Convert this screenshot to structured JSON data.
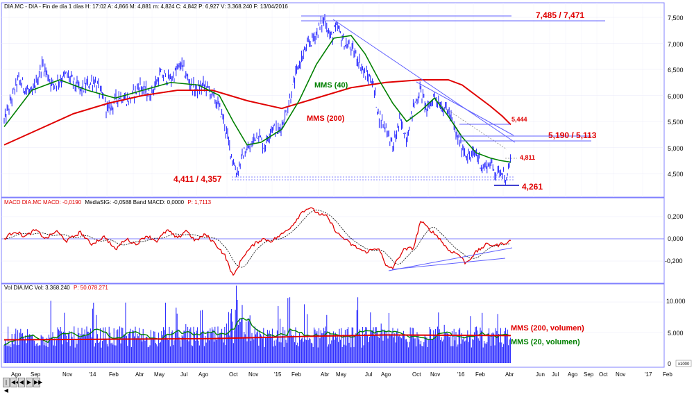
{
  "price_panel": {
    "header": "DIA.MC - DIA - Fin de día 1 días H: 17:02 A: 4,866 M: 4,881 m: 4,824 C: 4,842 P: 6,927 V: 3.368.240 F: 13/04/2016",
    "y_ticks": [
      "7,500",
      "7,000",
      "6,500",
      "6,000",
      "5,500",
      "5,000",
      "4,500"
    ],
    "annotations": {
      "top_resistance": "7,485 / 7,471",
      "level_5444": "5,444",
      "level_5190": "5,190 / 5,113",
      "level_4811": "4,811",
      "support_left": "4,411 / 4,357",
      "level_4261": "4,261",
      "mms40_label": "MMS (40)",
      "mms200_label": "MMS (200)"
    }
  },
  "macd_panel": {
    "header_red": "MACD  DIA.MC  MACD: -0,0190",
    "header_black": "MediaSIG: -0,0588  Band  MACD: 0,0000",
    "header_red2": "P: 1,7113",
    "y_ticks": [
      "0,200",
      "0,000",
      "-0,200"
    ]
  },
  "volume_panel": {
    "header_black": "Vol  DIA.MC  Vol: 3.368.240",
    "header_red": "P: 50.078.271",
    "y_ticks": [
      "10.000",
      "5.000",
      "0"
    ],
    "unit_box": "x1000",
    "mms200_label": "MMS (200, volumen)",
    "mms20_label": "MMS (20, volumen)"
  },
  "x_axis_labels": [
    "Ago",
    "Sep",
    "Nov",
    "'14",
    "Feb",
    "Abr",
    "May",
    "Jul",
    "Ago",
    "Oct",
    "Nov",
    "'15",
    "Feb",
    "Abr",
    "May",
    "Jul",
    "Ago",
    "Oct",
    "Nov",
    "'16",
    "Feb",
    "Abr",
    "Jun",
    "Jul",
    "Ago",
    "Sep",
    "Oct",
    "Nov",
    "'17",
    "Feb"
  ],
  "nav_buttons": [
    "|◀",
    "◀◀",
    "◀",
    "▶",
    "▶▶"
  ],
  "colors": {
    "price": "#1a1aff",
    "mms40": "#008000",
    "mms200": "#e00000",
    "trendline": "#6060ff",
    "macd": "#e00000",
    "signal": "#000000",
    "volume": "#1a1aff",
    "vol_mms200": "#e00000",
    "vol_mms20": "#008000",
    "annotation_red": "#e00000"
  },
  "chart_data": [
    {
      "type": "line",
      "name": "price",
      "x_range_months": [
        "2013-08",
        "2016-04"
      ],
      "ylim": [
        4.2,
        7.55
      ],
      "close_points": [
        [
          0,
          5.5
        ],
        [
          20,
          6.3
        ],
        [
          40,
          6.0
        ],
        [
          55,
          6.6
        ],
        [
          70,
          6.2
        ],
        [
          90,
          6.4
        ],
        [
          110,
          6.1
        ],
        [
          130,
          6.3
        ],
        [
          150,
          5.7
        ],
        [
          165,
          6.0
        ],
        [
          180,
          5.9
        ],
        [
          195,
          6.2
        ],
        [
          210,
          6.0
        ],
        [
          225,
          6.4
        ],
        [
          240,
          6.3
        ],
        [
          255,
          6.6
        ],
        [
          265,
          6.3
        ],
        [
          275,
          6.1
        ],
        [
          290,
          6.2
        ],
        [
          305,
          5.9
        ],
        [
          315,
          5.6
        ],
        [
          325,
          5.0
        ],
        [
          335,
          4.5
        ],
        [
          345,
          4.9
        ],
        [
          355,
          5.0
        ],
        [
          365,
          5.3
        ],
        [
          375,
          5.0
        ],
        [
          385,
          5.4
        ],
        [
          395,
          5.3
        ],
        [
          405,
          5.6
        ],
        [
          415,
          6.1
        ],
        [
          425,
          6.6
        ],
        [
          435,
          6.9
        ],
        [
          445,
          7.1
        ],
        [
          455,
          7.3
        ],
        [
          462,
          7.48
        ],
        [
          470,
          7.1
        ],
        [
          480,
          7.3
        ],
        [
          490,
          7.0
        ],
        [
          500,
          6.9
        ],
        [
          510,
          6.7
        ],
        [
          520,
          6.4
        ],
        [
          530,
          6.3
        ],
        [
          540,
          5.6
        ],
        [
          550,
          5.4
        ],
        [
          560,
          5.0
        ],
        [
          570,
          5.5
        ],
        [
          580,
          5.2
        ],
        [
          590,
          5.8
        ],
        [
          600,
          6.1
        ],
        [
          610,
          5.7
        ],
        [
          620,
          6.0
        ],
        [
          630,
          5.8
        ],
        [
          640,
          5.7
        ],
        [
          650,
          5.3
        ],
        [
          660,
          5.0
        ],
        [
          670,
          4.8
        ],
        [
          680,
          4.9
        ],
        [
          690,
          4.6
        ],
        [
          700,
          4.7
        ],
        [
          710,
          4.5
        ],
        [
          718,
          4.6
        ],
        [
          724,
          4.3
        ],
        [
          730,
          4.84
        ]
      ],
      "mms40_points": [
        [
          0,
          5.4
        ],
        [
          40,
          6.1
        ],
        [
          80,
          6.3
        ],
        [
          120,
          6.1
        ],
        [
          160,
          5.95
        ],
        [
          200,
          6.1
        ],
        [
          240,
          6.25
        ],
        [
          280,
          6.2
        ],
        [
          310,
          6.0
        ],
        [
          330,
          5.5
        ],
        [
          350,
          5.05
        ],
        [
          370,
          5.1
        ],
        [
          400,
          5.35
        ],
        [
          425,
          5.9
        ],
        [
          450,
          6.6
        ],
        [
          475,
          7.1
        ],
        [
          500,
          7.15
        ],
        [
          520,
          6.8
        ],
        [
          540,
          6.3
        ],
        [
          560,
          5.85
        ],
        [
          580,
          5.5
        ],
        [
          600,
          5.7
        ],
        [
          620,
          5.95
        ],
        [
          640,
          5.6
        ],
        [
          660,
          5.2
        ],
        [
          680,
          4.9
        ],
        [
          700,
          4.8
        ],
        [
          715,
          4.75
        ],
        [
          730,
          4.72
        ]
      ],
      "mms200_points": [
        [
          0,
          5.05
        ],
        [
          50,
          5.35
        ],
        [
          100,
          5.65
        ],
        [
          150,
          5.85
        ],
        [
          200,
          6.0
        ],
        [
          250,
          6.1
        ],
        [
          300,
          6.1
        ],
        [
          350,
          5.9
        ],
        [
          400,
          5.75
        ],
        [
          450,
          5.95
        ],
        [
          500,
          6.15
        ],
        [
          550,
          6.25
        ],
        [
          600,
          6.3
        ],
        [
          640,
          6.3
        ],
        [
          660,
          6.2
        ],
        [
          680,
          6.0
        ],
        [
          700,
          5.8
        ],
        [
          718,
          5.6
        ],
        [
          730,
          5.44
        ]
      ],
      "levels": [
        7.485,
        7.471,
        5.444,
        5.19,
        5.113,
        4.811,
        4.411,
        4.357,
        4.261
      ]
    },
    {
      "type": "line",
      "name": "MACD",
      "ylim": [
        -0.4,
        0.32
      ],
      "macd_points": [
        [
          0,
          0.0
        ],
        [
          15,
          0.07
        ],
        [
          30,
          0.02
        ],
        [
          45,
          0.08
        ],
        [
          60,
          0.0
        ],
        [
          75,
          0.07
        ],
        [
          90,
          -0.02
        ],
        [
          110,
          0.06
        ],
        [
          125,
          -0.05
        ],
        [
          145,
          0.02
        ],
        [
          160,
          -0.1
        ],
        [
          175,
          0.0
        ],
        [
          190,
          -0.05
        ],
        [
          205,
          0.03
        ],
        [
          220,
          -0.02
        ],
        [
          235,
          0.08
        ],
        [
          250,
          0.0
        ],
        [
          262,
          0.08
        ],
        [
          275,
          -0.02
        ],
        [
          290,
          0.04
        ],
        [
          305,
          -0.05
        ],
        [
          318,
          -0.15
        ],
        [
          330,
          -0.34
        ],
        [
          345,
          -0.15
        ],
        [
          360,
          -0.05
        ],
        [
          372,
          0.0
        ],
        [
          385,
          -0.02
        ],
        [
          400,
          0.04
        ],
        [
          415,
          0.12
        ],
        [
          430,
          0.25
        ],
        [
          440,
          0.28
        ],
        [
          455,
          0.22
        ],
        [
          465,
          0.2
        ],
        [
          480,
          0.05
        ],
        [
          500,
          -0.05
        ],
        [
          520,
          -0.12
        ],
        [
          540,
          -0.08
        ],
        [
          550,
          -0.25
        ],
        [
          560,
          -0.26
        ],
        [
          575,
          -0.1
        ],
        [
          590,
          -0.08
        ],
        [
          600,
          0.16
        ],
        [
          610,
          0.1
        ],
        [
          625,
          0.02
        ],
        [
          640,
          -0.1
        ],
        [
          655,
          -0.14
        ],
        [
          665,
          -0.22
        ],
        [
          680,
          -0.12
        ],
        [
          695,
          -0.05
        ],
        [
          710,
          -0.06
        ],
        [
          730,
          -0.02
        ]
      ]
    },
    {
      "type": "bar",
      "name": "Volume (x1000)",
      "ylim": [
        0,
        12000
      ],
      "mms200_level": 4500,
      "mms20_avg": 4000
    }
  ]
}
